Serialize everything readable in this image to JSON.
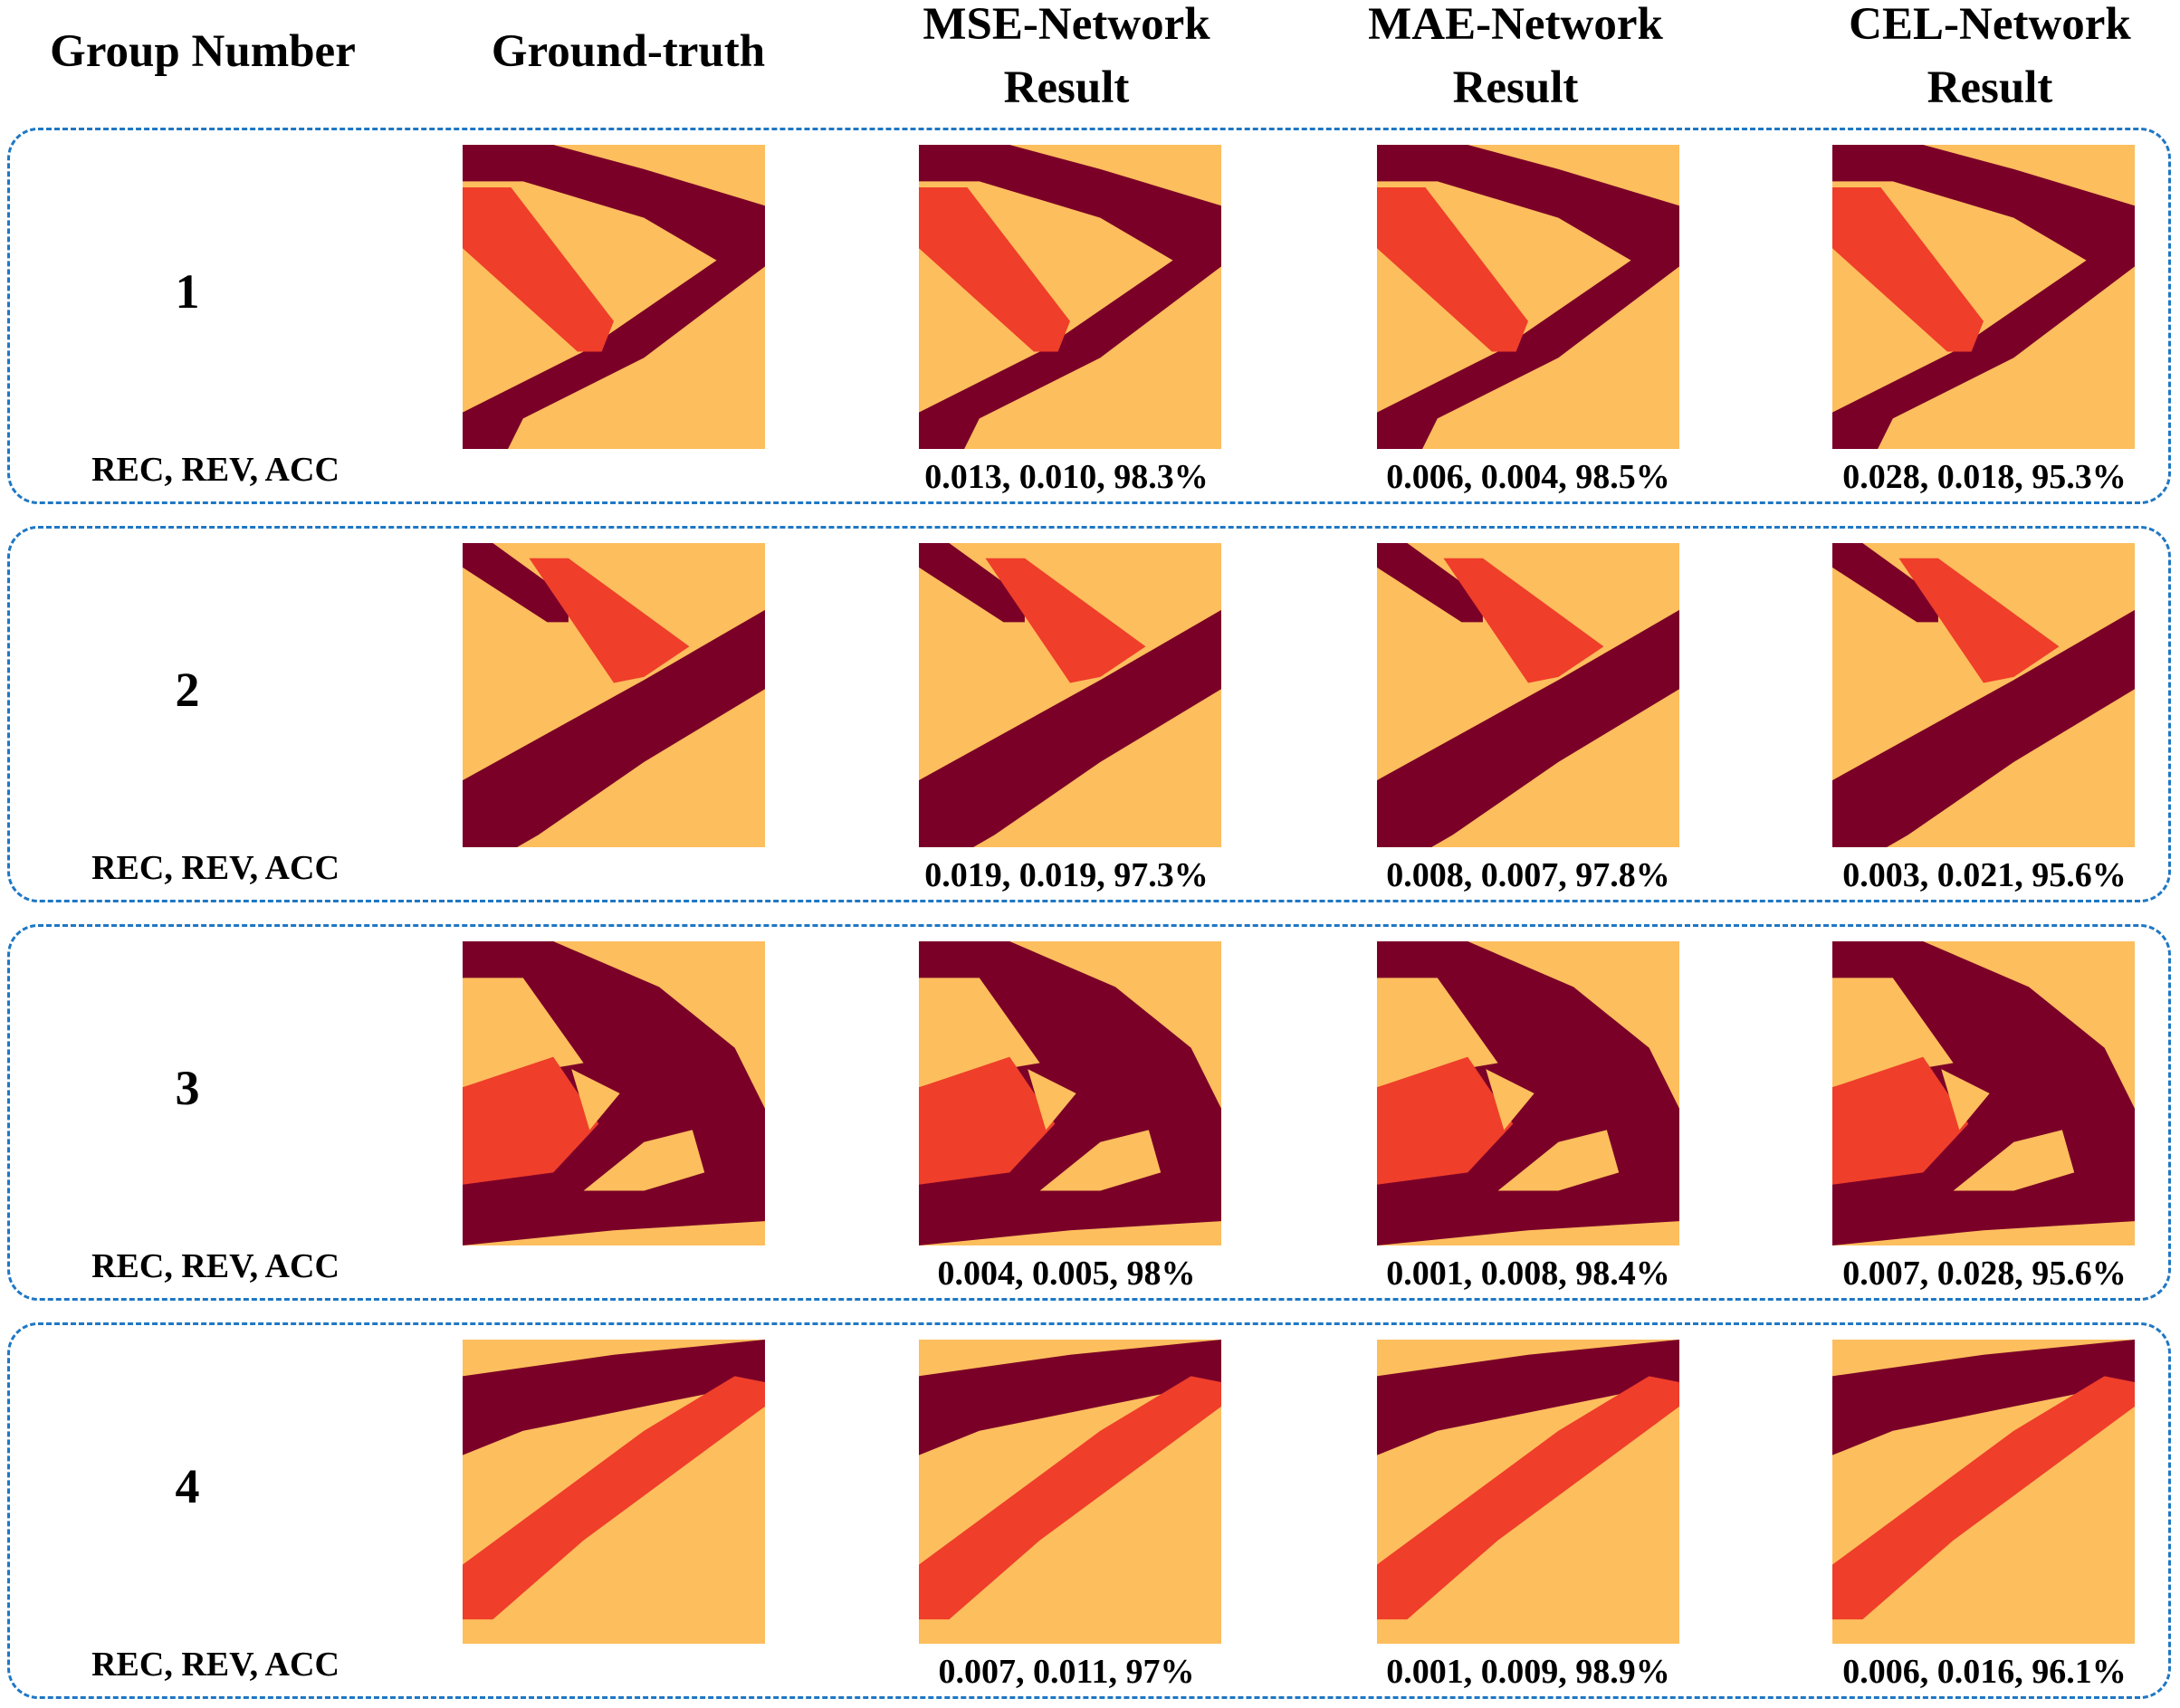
{
  "headers": {
    "group_number": "Group Number",
    "ground_truth": "Ground-truth",
    "mse": [
      "MSE-Network",
      "Result"
    ],
    "mae": [
      "MAE-Network",
      "Result"
    ],
    "cel": [
      "CEL-Network",
      "Result"
    ]
  },
  "metric_label": "REC, REV, ACC",
  "colors": {
    "background": "#FDBE5D",
    "dark": "#7B0028",
    "red": "#EF3E2A",
    "border": "#1F77C4"
  },
  "groups": [
    {
      "number": "1",
      "mse": "0.013, 0.010, 98.3%",
      "mae": "0.006, 0.004, 98.5%",
      "cel": "0.028, 0.018, 95.3%"
    },
    {
      "number": "2",
      "mse": "0.019, 0.019, 97.3%",
      "mae": "0.008, 0.007, 97.8%",
      "cel": "0.003, 0.021, 95.6%"
    },
    {
      "number": "3",
      "mse": "0.004, 0.005, 98%",
      "mae": "0.001, 0.008, 98.4%",
      "cel": "0.007, 0.028, 95.6%"
    },
    {
      "number": "4",
      "mse": "0.007, 0.011, 97%",
      "mae": "0.001, 0.009, 98.9%",
      "cel": "0.006, 0.016, 96.1%"
    }
  ]
}
